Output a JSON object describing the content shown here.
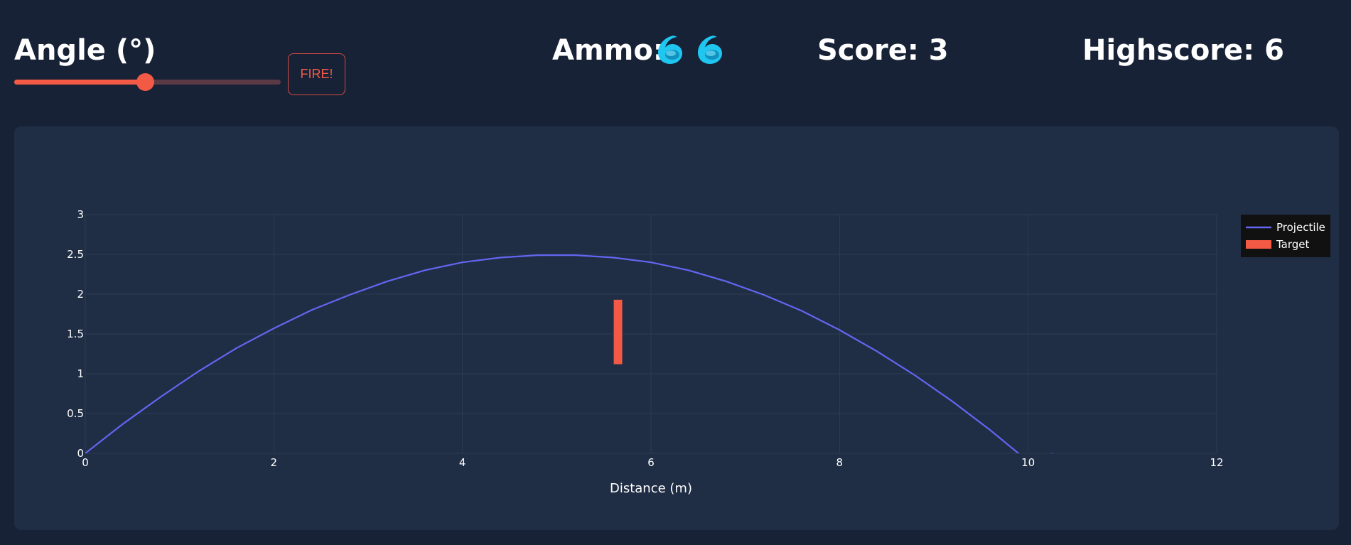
{
  "header": {
    "angle_label": "Angle (°)",
    "fire_label": "FIRE!",
    "ammo_label": "Ammo:",
    "ammo_count": 2,
    "ammo_icon": "blue-disc-icon",
    "score_label": "Score: 3",
    "highscore_label": "Highscore: 6"
  },
  "slider": {
    "value_fraction": 0.49
  },
  "colors": {
    "background": "#172236",
    "panel": "#1f2d45",
    "accent": "#f25a46",
    "projectile": "#6366f1",
    "target": "#f25a46",
    "legend_bg": "#111111",
    "ammo_icon": "#1fc6f0"
  },
  "chart_data": {
    "type": "line",
    "title": "",
    "xlabel": "Distance (m)",
    "ylabel": "",
    "xlim": [
      0,
      12
    ],
    "ylim": [
      0,
      3
    ],
    "x_ticks": [
      0,
      2,
      4,
      6,
      8,
      10,
      12
    ],
    "y_ticks": [
      0,
      0.5,
      1,
      1.5,
      2,
      2.5,
      3
    ],
    "x_tick_labels": [
      "0",
      "2",
      "4",
      "6",
      "8",
      "10",
      "12"
    ],
    "y_tick_labels": [
      "0",
      "0.5",
      "1",
      "1.5",
      "2",
      "2.5",
      "3"
    ],
    "grid": true,
    "legend_position": "top-right",
    "series": [
      {
        "name": "Projectile",
        "x": [
          0,
          0.4,
          0.8,
          1.2,
          1.6,
          2.0,
          2.4,
          2.8,
          3.2,
          3.6,
          4.0,
          4.4,
          4.8,
          5.2,
          5.6,
          6.0,
          6.4,
          6.8,
          7.2,
          7.6,
          8.0,
          8.4,
          8.8,
          9.2,
          9.6,
          10.0,
          10.26
        ],
        "y": [
          0,
          0.37,
          0.71,
          1.03,
          1.32,
          1.57,
          1.8,
          1.99,
          2.16,
          2.3,
          2.4,
          2.46,
          2.49,
          2.49,
          2.46,
          2.4,
          2.3,
          2.16,
          1.99,
          1.79,
          1.55,
          1.28,
          0.98,
          0.65,
          0.29,
          -0.1,
          0
        ]
      }
    ],
    "target": {
      "name": "Target",
      "x": 5.65,
      "y_bottom": 1.12,
      "y_top": 1.93,
      "width_x": 0.09
    }
  }
}
